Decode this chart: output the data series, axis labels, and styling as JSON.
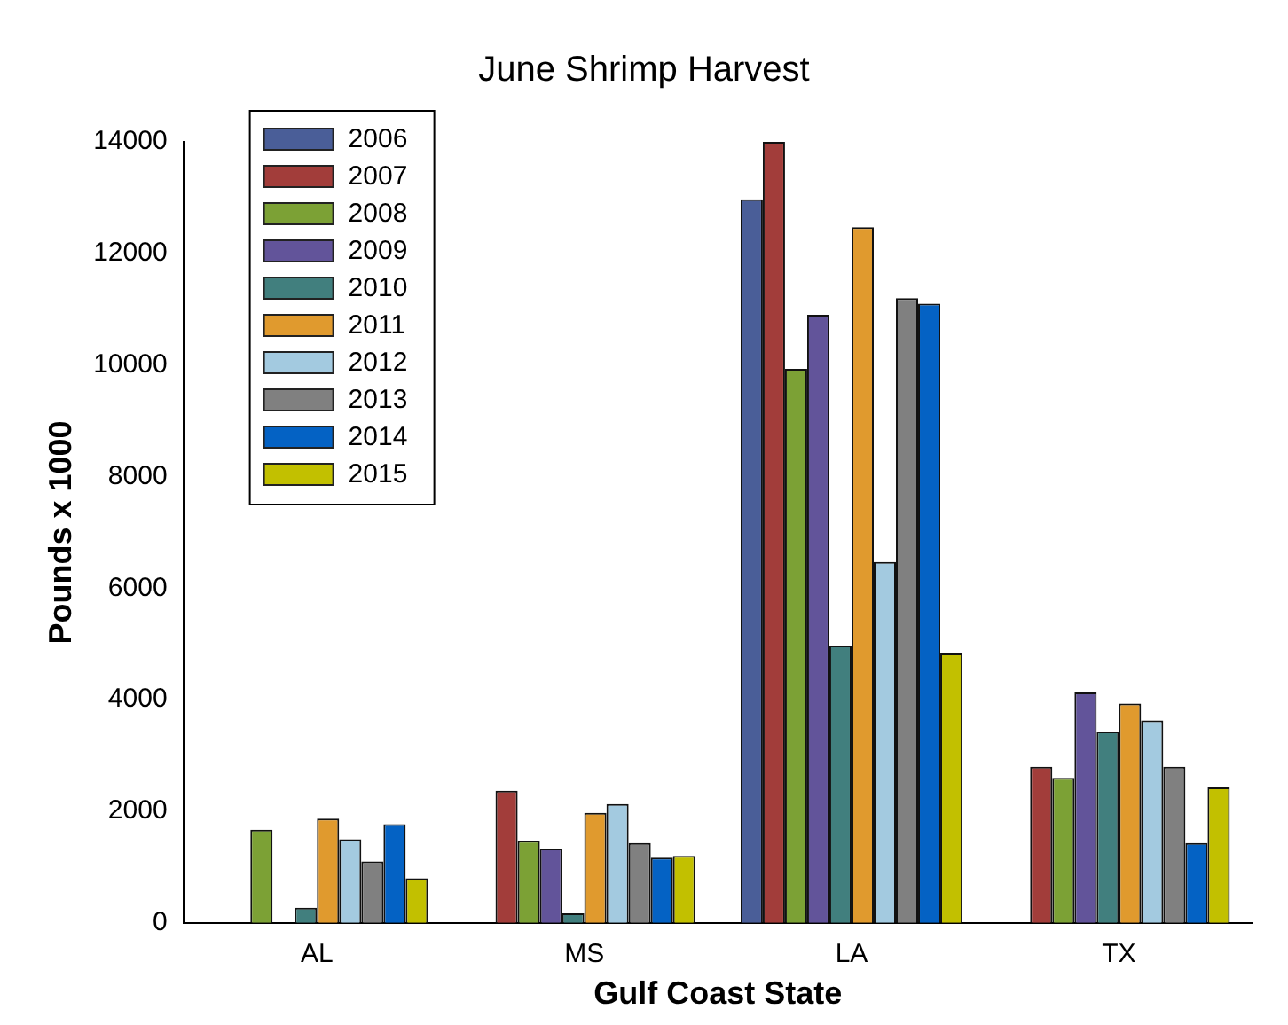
{
  "chart_data": {
    "type": "bar",
    "title": "June Shrimp Harvest",
    "xlabel": "Gulf Coast State",
    "ylabel": "Pounds x 1000",
    "categories": [
      "AL",
      "MS",
      "LA",
      "TX"
    ],
    "ylim": [
      0,
      14000
    ],
    "yticks": [
      0,
      2000,
      4000,
      6000,
      8000,
      10000,
      12000,
      14000
    ],
    "grid": false,
    "legend": "top left",
    "series": [
      {
        "name": "2006",
        "color": "#4a5e98",
        "values": [
          null,
          null,
          12970,
          null
        ]
      },
      {
        "name": "2007",
        "color": "#a23d3a",
        "values": [
          null,
          2370,
          14000,
          2800
        ]
      },
      {
        "name": "2008",
        "color": "#7ca135",
        "values": [
          1670,
          1470,
          9930,
          2600
        ]
      },
      {
        "name": "2009",
        "color": "#62549a",
        "values": [
          null,
          1330,
          10900,
          4130
        ]
      },
      {
        "name": "2010",
        "color": "#417f7e",
        "values": [
          270,
          170,
          4970,
          3430
        ]
      },
      {
        "name": "2011",
        "color": "#e09a2e",
        "values": [
          1870,
          1970,
          12470,
          3930
        ]
      },
      {
        "name": "2012",
        "color": "#a3cae0",
        "values": [
          1500,
          2130,
          6470,
          3630
        ]
      },
      {
        "name": "2013",
        "color": "#808080",
        "values": [
          1100,
          1430,
          11200,
          2800
        ]
      },
      {
        "name": "2014",
        "color": "#0462c4",
        "values": [
          1770,
          1170,
          11100,
          1430
        ]
      },
      {
        "name": "2015",
        "color": "#c2c000",
        "values": [
          800,
          1200,
          4830,
          2430
        ]
      }
    ]
  }
}
